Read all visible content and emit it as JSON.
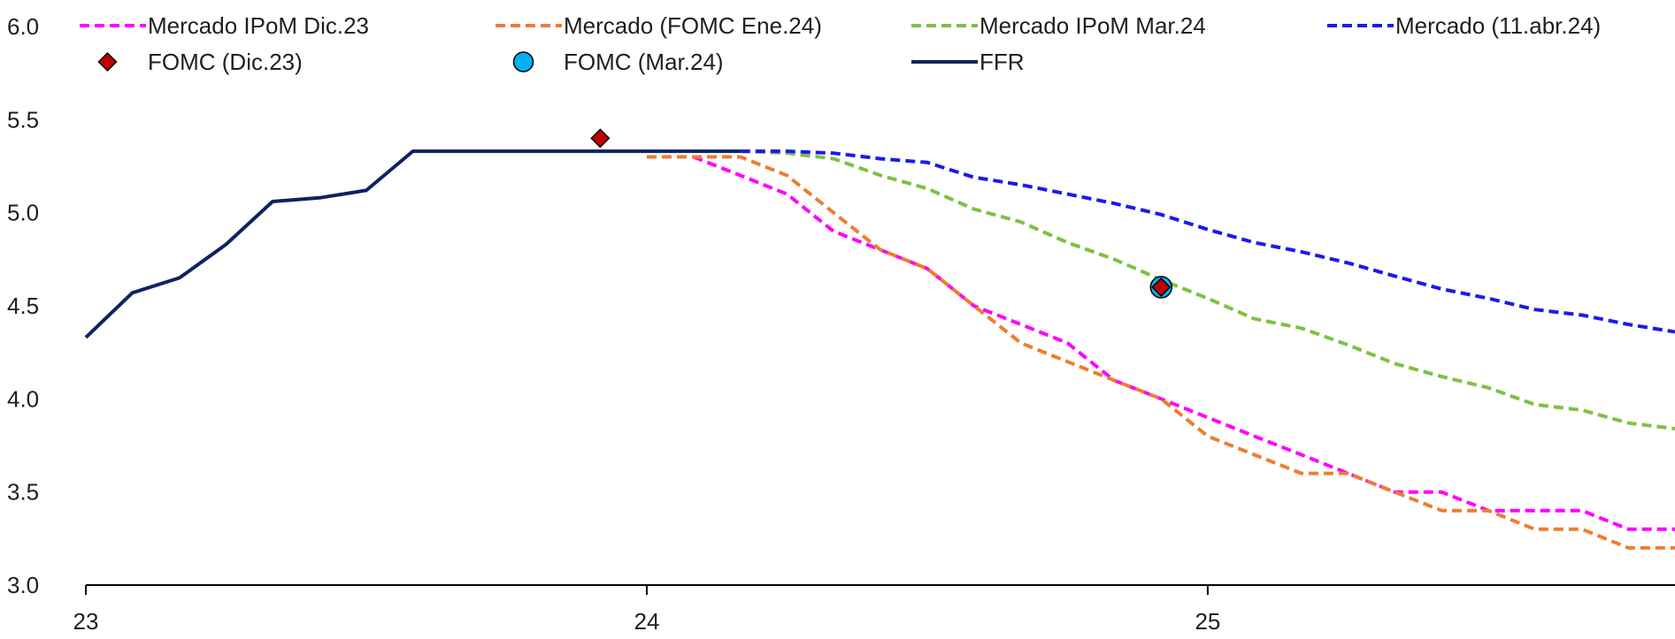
{
  "chart_data": {
    "type": "line",
    "title": "",
    "xlabel": "",
    "ylabel": "",
    "xlim": [
      23,
      25.833
    ],
    "ylim": [
      3.0,
      6.0
    ],
    "yticks": [
      3.0,
      3.5,
      4.0,
      4.5,
      5.0,
      5.5,
      6.0
    ],
    "ytick_labels": [
      "3.0",
      "3.5",
      "4.0",
      "4.5",
      "5.0",
      "5.5",
      "6.0"
    ],
    "xticks": [
      23,
      24,
      25
    ],
    "xtick_labels": [
      "23",
      "24",
      "25"
    ],
    "grid": false,
    "legend_position": "top",
    "series": [
      {
        "name": "Mercado IPoM Dic.23",
        "style": "dashed",
        "color": "#ff00ff",
        "x": [
          24.083,
          24.167,
          24.25,
          24.333,
          24.417,
          24.5,
          24.583,
          24.667,
          24.75,
          24.833,
          24.917,
          25.0,
          25.083,
          25.167,
          25.25,
          25.333,
          25.417,
          25.5,
          25.583,
          25.667,
          25.75,
          25.833
        ],
        "y": [
          5.3,
          5.2,
          5.1,
          4.9,
          4.8,
          4.7,
          4.5,
          4.4,
          4.3,
          4.1,
          4.0,
          3.9,
          3.8,
          3.7,
          3.6,
          3.5,
          3.5,
          3.4,
          3.4,
          3.4,
          3.3,
          3.3
        ]
      },
      {
        "name": "Mercado (FOMC Ene.24)",
        "style": "dashed",
        "color": "#ed7d31",
        "x": [
          24.0,
          24.083,
          24.167,
          24.25,
          24.333,
          24.417,
          24.5,
          24.583,
          24.667,
          24.75,
          24.833,
          24.917,
          25.0,
          25.083,
          25.167,
          25.25,
          25.333,
          25.417,
          25.5,
          25.583,
          25.667,
          25.75,
          25.833
        ],
        "y": [
          5.3,
          5.3,
          5.3,
          5.2,
          5.0,
          4.8,
          4.7,
          4.5,
          4.3,
          4.2,
          4.1,
          4.0,
          3.8,
          3.7,
          3.6,
          3.6,
          3.5,
          3.4,
          3.4,
          3.3,
          3.3,
          3.2,
          3.2
        ]
      },
      {
        "name": "Mercado IPoM Mar.24",
        "style": "dashed",
        "color": "#7cc242",
        "x": [
          24.167,
          24.25,
          24.333,
          24.417,
          24.5,
          24.583,
          24.667,
          24.75,
          24.833,
          24.917,
          25.0,
          25.083,
          25.167,
          25.25,
          25.333,
          25.417,
          25.5,
          25.583,
          25.667,
          25.75,
          25.833
        ],
        "y": [
          5.33,
          5.32,
          5.29,
          5.2,
          5.13,
          5.02,
          4.95,
          4.84,
          4.75,
          4.64,
          4.54,
          4.43,
          4.38,
          4.29,
          4.19,
          4.12,
          4.06,
          3.97,
          3.94,
          3.87,
          3.84
        ]
      },
      {
        "name": "Mercado (11.abr.24)",
        "style": "dashed",
        "color": "#1a1aee",
        "x": [
          24.167,
          24.25,
          24.333,
          24.417,
          24.5,
          24.583,
          24.667,
          24.75,
          24.833,
          24.917,
          25.0,
          25.083,
          25.167,
          25.25,
          25.333,
          25.417,
          25.5,
          25.583,
          25.667,
          25.75,
          25.833
        ],
        "y": [
          5.33,
          5.33,
          5.32,
          5.29,
          5.27,
          5.19,
          5.15,
          5.1,
          5.05,
          4.99,
          4.91,
          4.84,
          4.79,
          4.73,
          4.66,
          4.59,
          4.54,
          4.48,
          4.45,
          4.4,
          4.36
        ]
      },
      {
        "name": "FFR",
        "style": "solid",
        "color": "#0d2360",
        "x": [
          23.0,
          23.083,
          23.167,
          23.25,
          23.333,
          23.417,
          23.5,
          23.583,
          23.667,
          23.75,
          23.833,
          23.917,
          24.0,
          24.083,
          24.167
        ],
        "y": [
          4.33,
          4.57,
          4.65,
          4.83,
          5.06,
          5.08,
          5.12,
          5.33,
          5.33,
          5.33,
          5.33,
          5.33,
          5.33,
          5.33,
          5.33
        ]
      }
    ],
    "markers": [
      {
        "name": "FOMC (Dic.23)",
        "shape": "diamond",
        "color": "#c00000",
        "points": [
          {
            "x": 23.917,
            "y": 5.4
          },
          {
            "x": 24.917,
            "y": 4.6
          }
        ]
      },
      {
        "name": "FOMC (Mar.24)",
        "shape": "circle",
        "color": "#00b0f0",
        "points": [
          {
            "x": 24.917,
            "y": 4.6
          }
        ]
      }
    ]
  }
}
